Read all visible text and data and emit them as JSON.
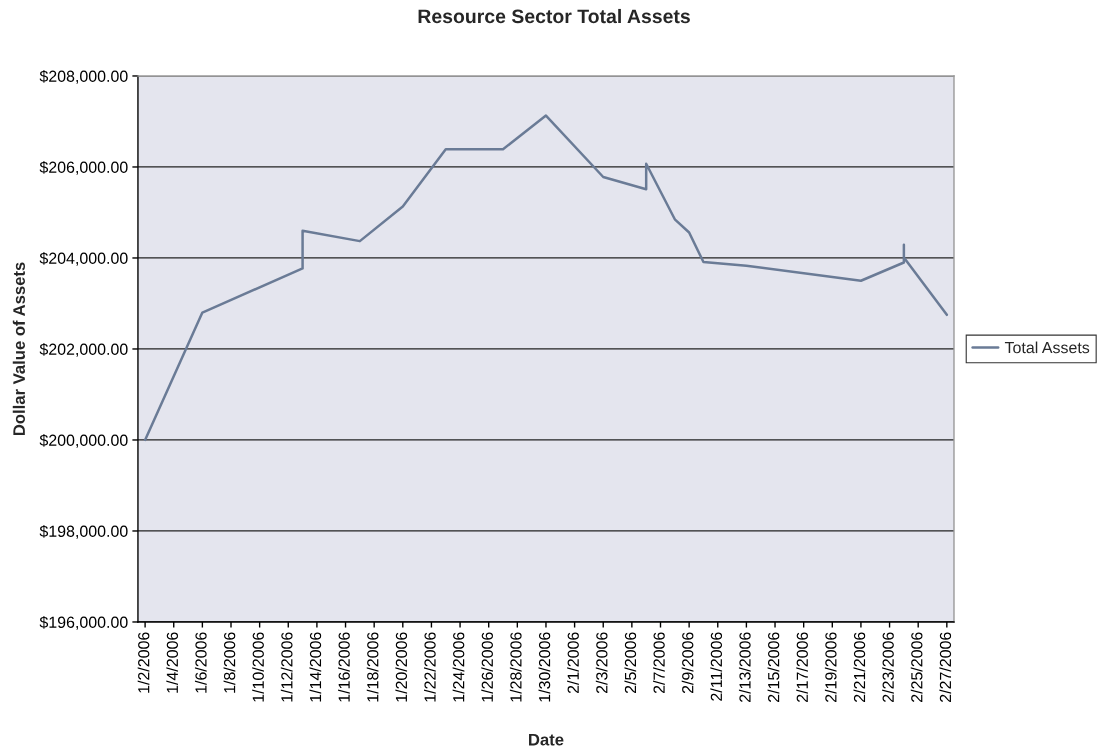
{
  "chart_data": {
    "type": "line",
    "title": "Resource Sector Total Assets",
    "xlabel": "Date",
    "ylabel": "Dollar Value of Assets",
    "x": [
      "2006-01-02",
      "2006-01-06",
      "2006-01-13",
      "2006-01-13",
      "2006-01-17",
      "2006-01-20",
      "2006-01-23",
      "2006-01-27",
      "2006-01-30",
      "2006-02-03",
      "2006-02-06",
      "2006-02-06",
      "2006-02-08",
      "2006-02-09",
      "2006-02-10",
      "2006-02-13",
      "2006-02-21",
      "2006-02-24",
      "2006-02-24",
      "2006-02-24",
      "2006-02-27"
    ],
    "series": [
      {
        "name": "Total Assets",
        "color": "#6a7b96",
        "values": [
          200000,
          202800,
          203770,
          204600,
          204370,
          205130,
          206390,
          206390,
          207130,
          205780,
          205510,
          206070,
          204850,
          204560,
          203910,
          203830,
          203500,
          203900,
          204290,
          204010,
          202750
        ]
      }
    ],
    "xlim": [
      "2006-01-01T12:00",
      "2006-02-27T12:00"
    ],
    "xticks": [
      {
        "value": "2006-01-02",
        "label": "1/2/2006"
      },
      {
        "value": "2006-01-04",
        "label": "1/4/2006"
      },
      {
        "value": "2006-01-06",
        "label": "1/6/2006"
      },
      {
        "value": "2006-01-08",
        "label": "1/8/2006"
      },
      {
        "value": "2006-01-10",
        "label": "1/10/2006"
      },
      {
        "value": "2006-01-12",
        "label": "1/12/2006"
      },
      {
        "value": "2006-01-14",
        "label": "1/14/2006"
      },
      {
        "value": "2006-01-16",
        "label": "1/16/2006"
      },
      {
        "value": "2006-01-18",
        "label": "1/18/2006"
      },
      {
        "value": "2006-01-20",
        "label": "1/20/2006"
      },
      {
        "value": "2006-01-22",
        "label": "1/22/2006"
      },
      {
        "value": "2006-01-24",
        "label": "1/24/2006"
      },
      {
        "value": "2006-01-26",
        "label": "1/26/2006"
      },
      {
        "value": "2006-01-28",
        "label": "1/28/2006"
      },
      {
        "value": "2006-01-30",
        "label": "1/30/2006"
      },
      {
        "value": "2006-02-01",
        "label": "2/1/2006"
      },
      {
        "value": "2006-02-03",
        "label": "2/3/2006"
      },
      {
        "value": "2006-02-05",
        "label": "2/5/2006"
      },
      {
        "value": "2006-02-07",
        "label": "2/7/2006"
      },
      {
        "value": "2006-02-09",
        "label": "2/9/2006"
      },
      {
        "value": "2006-02-11",
        "label": "2/11/2006"
      },
      {
        "value": "2006-02-13",
        "label": "2/13/2006"
      },
      {
        "value": "2006-02-15",
        "label": "2/15/2006"
      },
      {
        "value": "2006-02-17",
        "label": "2/17/2006"
      },
      {
        "value": "2006-02-19",
        "label": "2/19/2006"
      },
      {
        "value": "2006-02-21",
        "label": "2/21/2006"
      },
      {
        "value": "2006-02-23",
        "label": "2/23/2006"
      },
      {
        "value": "2006-02-25",
        "label": "2/25/2006"
      },
      {
        "value": "2006-02-27",
        "label": "2/27/2006"
      }
    ],
    "ylim": [
      196000,
      208000
    ],
    "yticks": [
      {
        "value": 196000,
        "label": "$196,000.00"
      },
      {
        "value": 198000,
        "label": "$198,000.00"
      },
      {
        "value": 200000,
        "label": "$200,000.00"
      },
      {
        "value": 202000,
        "label": "$202,000.00"
      },
      {
        "value": 204000,
        "label": "$204,000.00"
      },
      {
        "value": 206000,
        "label": "$206,000.00"
      },
      {
        "value": 208000,
        "label": "$208,000.00"
      }
    ],
    "grid": "y",
    "legend": "right",
    "marker": "none",
    "line_style": "solid"
  }
}
